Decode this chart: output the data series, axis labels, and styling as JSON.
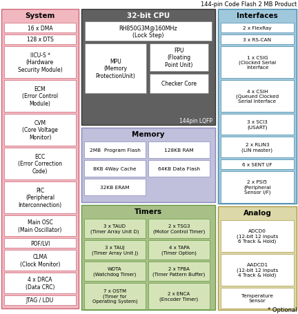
{
  "title": "144-pin Code Flash 2 MB Product",
  "colors": {
    "system_bg": "#F2B8C0",
    "cpu_bg": "#606060",
    "cpu_dark": "#505050",
    "memory_bg": "#C0C0DC",
    "memory_cell": "#DCDCF0",
    "timers_bg": "#A8C088",
    "timers_cell": "#D4E4B8",
    "interfaces_bg": "#A0C8DC",
    "analog_bg": "#DCD8A8",
    "white": "#FFFFFF",
    "border_dark": "#444444",
    "border_med": "#666666"
  },
  "sys_items": [
    [
      "16 x DMA",
      1
    ],
    [
      "128 x DTS",
      1
    ],
    [
      "IICU-S *\n(Hardware\nSecurity Module)",
      3
    ],
    [
      "ECM\n(Error Control\nModule)",
      3
    ],
    [
      "CVM\n(Core Voltage\nMonitor)",
      3
    ],
    [
      "ECC\n(Error Correction\nCode)",
      3
    ],
    [
      "PIC\n(Peripheral\nInterconnection)",
      3
    ],
    [
      "Main OSC\n(Main Oscillator)",
      2
    ],
    [
      "POF/LVI",
      1
    ],
    [
      "CLMA\n(Clock Monitor)",
      2
    ],
    [
      "4 x DRCA\n(Data CRC)",
      2
    ],
    [
      "JTAG / LDU",
      1
    ]
  ],
  "iface_items": [
    [
      "2 x FlexRay",
      1
    ],
    [
      "3 x RS-CAN",
      1
    ],
    [
      "1 x CSIG\n(Clocked Serial\nInterface",
      3
    ],
    [
      "4 x CSIH\n(Queued Clocked\nSerial Interface",
      3
    ],
    [
      "3 x SCI3\n(USART)",
      2
    ],
    [
      "2 x RLIN3\n(LIN master)",
      2
    ],
    [
      "6 x SENT I/F",
      1
    ],
    [
      "2 x PSI5\n(Peripheral\nSensor I/F)",
      3
    ]
  ],
  "analog_items": [
    [
      "ADCD0\n(12-bit 12 inputs\n6 Track & Hold)",
      3
    ],
    [
      "AADCD1\n(12-bit 12 inputs\n4 Track & Hold)",
      3
    ],
    [
      "Temperature\nSensor",
      2
    ]
  ],
  "timer_cells": [
    [
      "3 x TAUD\n(Timer Array Unit D)",
      "2 x TSG3\n(Motor Control Timer)"
    ],
    [
      "3 x TAUJ\n(Timer Array Unit J)",
      "4 x TAPA\n(Timer Option)"
    ],
    [
      "WDTA\n(Watchdog Timer)",
      "2 x TPBA\n(Timer Pattern Buffer)"
    ],
    [
      "7 x OSTM\n(Timer for\nOperating System)",
      "2 x ENCA\n(Encoder Timer)"
    ]
  ],
  "mem_cells": [
    [
      "2MB  Program Flash",
      "128KB RAM"
    ],
    [
      "8KB 4Way Cache",
      "64KB Data Flash"
    ],
    [
      "32KB ERAM",
      null
    ]
  ]
}
